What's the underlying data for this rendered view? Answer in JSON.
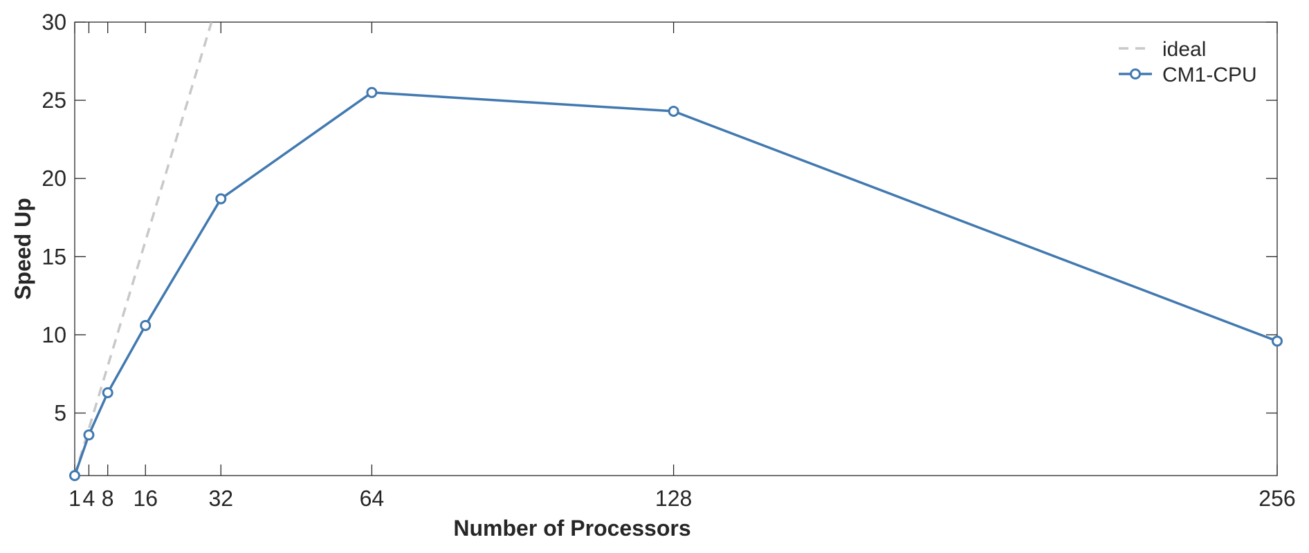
{
  "chart_data": {
    "type": "line",
    "xlabel": "Number of Processors",
    "ylabel": "Speed Up",
    "xlim": [
      1,
      256
    ],
    "ylim": [
      1,
      30
    ],
    "xticks": [
      1,
      4,
      8,
      16,
      32,
      64,
      128,
      256
    ],
    "xtick_labels": [
      "1",
      "4",
      "8",
      "16",
      "32",
      "64",
      "128",
      "256"
    ],
    "yticks": [
      5,
      10,
      15,
      20,
      25,
      30
    ],
    "ytick_labels": [
      "5",
      "10",
      "15",
      "20",
      "25",
      "30"
    ],
    "grid": false,
    "legend_position": "top-right",
    "series": [
      {
        "name": "ideal",
        "style": "dashed",
        "color": "#c8c8c8",
        "x": [
          1,
          30
        ],
        "y": [
          1,
          30
        ]
      },
      {
        "name": "CM1-CPU",
        "style": "solid",
        "marker": "circle",
        "color": "#4279b0",
        "x": [
          1,
          4,
          8,
          16,
          32,
          64,
          128,
          256
        ],
        "y": [
          1.0,
          3.6,
          6.3,
          10.6,
          18.7,
          25.5,
          24.3,
          9.6
        ]
      }
    ]
  }
}
